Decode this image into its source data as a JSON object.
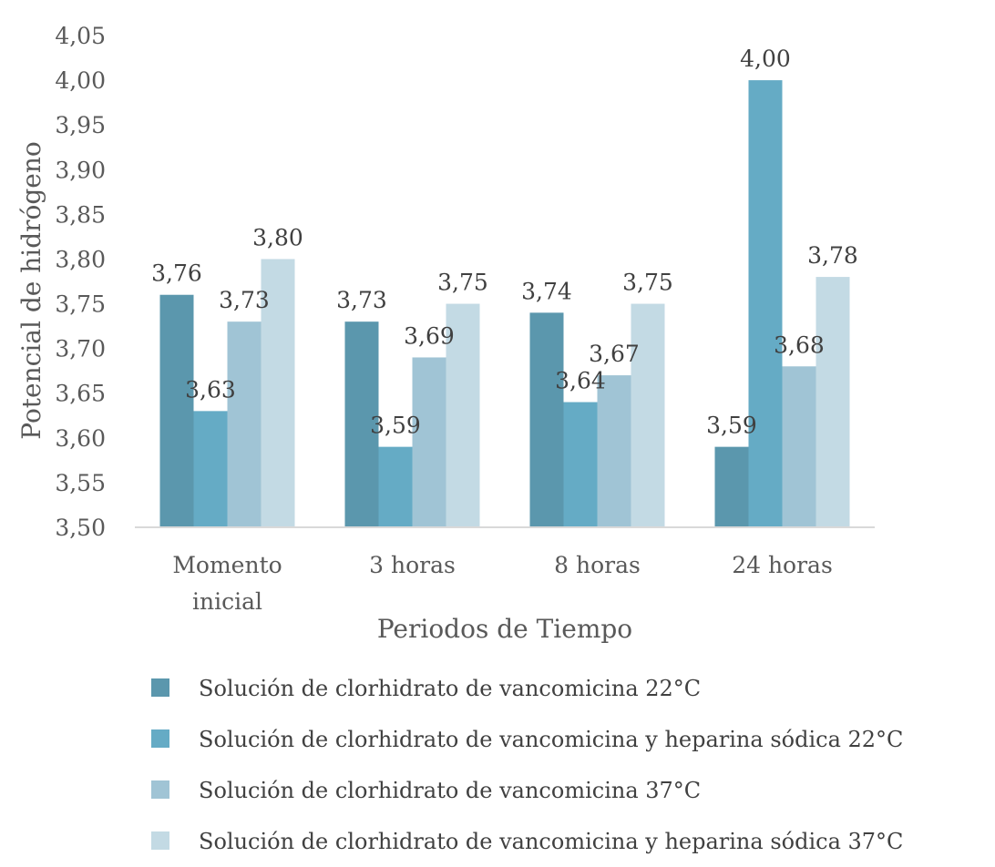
{
  "chart_data": {
    "type": "bar",
    "title": "",
    "xlabel": "Periodos de Tiempo",
    "ylabel": "Potencial de hidrógeno",
    "ylim": [
      3.5,
      4.05
    ],
    "ytick_step": 0.05,
    "ytick_labels": [
      "3,50",
      "3,55",
      "3,60",
      "3,65",
      "3,70",
      "3,75",
      "3,80",
      "3,85",
      "3,90",
      "3,95",
      "4,00",
      "4,05"
    ],
    "categories": [
      [
        "Momento",
        "inicial"
      ],
      [
        "3 horas"
      ],
      [
        "8 horas"
      ],
      [
        "24 horas"
      ]
    ],
    "grid": false,
    "legend_position": "bottom",
    "series": [
      {
        "name": "Solución de clorhidrato de vancomicina 22°C",
        "color": "#5b97ad",
        "values": [
          3.76,
          3.73,
          3.74,
          3.59
        ],
        "labels": [
          "3,76",
          "3,73",
          "3,74",
          "3,59"
        ]
      },
      {
        "name": "Solución de clorhidrato de vancomicina y heparina sódica 22°C",
        "color": "#65abc5",
        "values": [
          3.63,
          3.59,
          3.64,
          4.0
        ],
        "labels": [
          "3,63",
          "3,59",
          "3,64",
          "4,00"
        ]
      },
      {
        "name": "Solución de clorhidrato de vancomicina 37°C",
        "color": "#a0c4d5",
        "values": [
          3.73,
          3.69,
          3.67,
          3.68
        ],
        "labels": [
          "3,73",
          "3,69",
          "3,67",
          "3,68"
        ]
      },
      {
        "name": "Solución de clorhidrato de vancomicina y heparina sódica 37°C",
        "color": "#c3dae4",
        "values": [
          3.8,
          3.75,
          3.75,
          3.78
        ],
        "labels": [
          "3,80",
          "3,75",
          "3,75",
          "3,78"
        ]
      }
    ]
  }
}
